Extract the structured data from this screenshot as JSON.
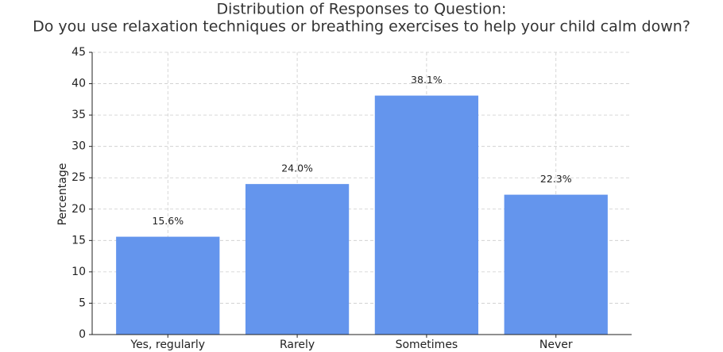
{
  "chart_data": {
    "type": "bar",
    "title": [
      "Distribution of Responses to Question:",
      "Do you use relaxation techniques or breathing exercises to help your child calm down?"
    ],
    "y_label": "Percentage",
    "categories": [
      "Yes, regularly",
      "Rarely",
      "Sometimes",
      "Never"
    ],
    "values": [
      15.6,
      24.0,
      38.1,
      22.3
    ],
    "value_labels": [
      "15.6%",
      "24.0%",
      "38.1%",
      "22.3%"
    ],
    "color": "#6495ed",
    "ylim": [
      0,
      45
    ],
    "yticks": [
      0,
      5,
      10,
      15,
      20,
      25,
      30,
      35,
      40,
      45
    ],
    "grid": true
  }
}
